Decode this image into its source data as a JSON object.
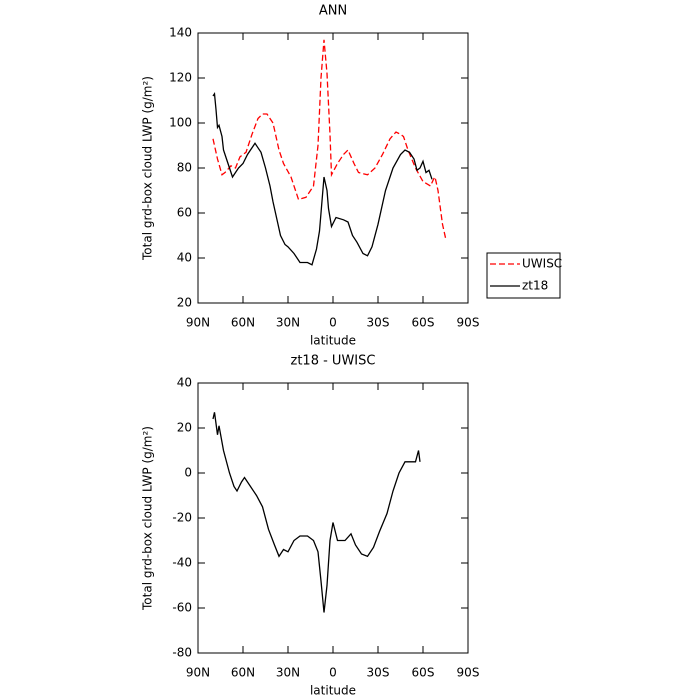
{
  "chart_data": [
    {
      "type": "line",
      "title": "ANN",
      "x_label": "latitude",
      "y_label": "Total grd-box cloud LWP (g/m²)",
      "xlim": [
        90,
        -90
      ],
      "xticks": [
        {
          "value": 90,
          "label": "90N"
        },
        {
          "value": 60,
          "label": "60N"
        },
        {
          "value": 30,
          "label": "30N"
        },
        0,
        {
          "value": -30,
          "label": "30S"
        },
        {
          "value": -60,
          "label": "60S"
        },
        {
          "value": -90,
          "label": "90S"
        }
      ],
      "ylim": [
        20,
        140
      ],
      "yticks": [
        20,
        40,
        60,
        80,
        100,
        120,
        140
      ],
      "legend": "right",
      "series": [
        {
          "name": "UWISC",
          "color": "#ff0000",
          "linestyle": "dashed",
          "x": [
            80,
            77,
            74,
            72,
            68,
            65,
            62,
            58,
            54,
            50,
            47,
            44,
            40,
            36,
            33,
            28,
            25,
            23,
            18,
            13,
            10,
            8,
            6,
            4,
            2,
            1,
            -3,
            -7,
            -10,
            -14,
            -17,
            -23,
            -28,
            -33,
            -38,
            -42,
            -45,
            -47,
            -50,
            -55,
            -60,
            -65,
            -67,
            -68,
            -70,
            -73,
            -75
          ],
          "values": [
            93,
            84,
            77,
            78,
            81,
            80,
            85,
            87,
            95,
            102,
            104,
            104,
            100,
            88,
            82,
            76,
            70,
            66,
            67,
            72,
            90,
            120,
            137,
            122,
            95,
            77,
            82,
            86,
            88,
            82,
            78,
            77,
            80,
            86,
            93,
            96,
            95,
            94,
            88,
            80,
            74,
            72,
            75,
            76,
            70,
            55,
            49
          ]
        },
        {
          "name": "zt18",
          "color": "#000000",
          "linestyle": "solid",
          "x": [
            80,
            79,
            78,
            77,
            76,
            74,
            73,
            70,
            67,
            65,
            63,
            60,
            57,
            55,
            52,
            50,
            48,
            45,
            42,
            40,
            37,
            35,
            32,
            30,
            26,
            22,
            17,
            14,
            11,
            9,
            8,
            6,
            4,
            3,
            1,
            -2,
            -7,
            -10,
            -13,
            -16,
            -20,
            -23,
            -26,
            -30,
            -35,
            -40,
            -45,
            -48,
            -51,
            -54,
            -56,
            -58,
            -60,
            -62,
            -64,
            -66
          ],
          "values": [
            112,
            113,
            106,
            98,
            99,
            94,
            88,
            82,
            76,
            78,
            80,
            82,
            86,
            88,
            91,
            89,
            87,
            80,
            72,
            65,
            56,
            50,
            46,
            45,
            42,
            38,
            38,
            37,
            44,
            52,
            60,
            76,
            70,
            62,
            54,
            58,
            57,
            56,
            50,
            47,
            42,
            41,
            45,
            55,
            70,
            80,
            86,
            88,
            87,
            84,
            79,
            80,
            83,
            78,
            79,
            75
          ]
        }
      ]
    },
    {
      "type": "line",
      "title": "zt18 - UWISC",
      "x_label": "latitude",
      "y_label": "Total grd-box cloud LWP (g/m²)",
      "xlim": [
        90,
        -90
      ],
      "xticks": [
        {
          "value": 90,
          "label": "90N"
        },
        {
          "value": 60,
          "label": "60N"
        },
        {
          "value": 30,
          "label": "30N"
        },
        0,
        {
          "value": -30,
          "label": "30S"
        },
        {
          "value": -60,
          "label": "60S"
        },
        {
          "value": -90,
          "label": "90S"
        }
      ],
      "ylim": [
        -80,
        40
      ],
      "yticks": [
        -80,
        -60,
        -40,
        -20,
        0,
        20,
        40
      ],
      "series": [
        {
          "color": "#000000",
          "linestyle": "solid",
          "x": [
            80,
            79,
            78,
            77,
            76,
            73,
            69,
            66,
            64,
            61,
            59,
            55,
            51,
            47,
            43,
            39,
            36,
            33,
            30,
            26,
            22,
            17,
            13,
            10,
            8,
            6,
            4,
            2,
            0,
            -3,
            -8,
            -12,
            -15,
            -19,
            -23,
            -27,
            -31,
            -36,
            -40,
            -44,
            -48,
            -52,
            -55,
            -57,
            -58
          ],
          "values": [
            24,
            27,
            22,
            17,
            21,
            10,
            0,
            -6,
            -8,
            -4,
            -2,
            -6,
            -10,
            -15,
            -25,
            -32,
            -37,
            -34,
            -35,
            -30,
            -28,
            -28,
            -30,
            -35,
            -48,
            -62,
            -50,
            -30,
            -22,
            -30,
            -30,
            -27,
            -32,
            -36,
            -37,
            -33,
            -26,
            -18,
            -8,
            0,
            5,
            5,
            5,
            10,
            5
          ]
        }
      ]
    }
  ]
}
